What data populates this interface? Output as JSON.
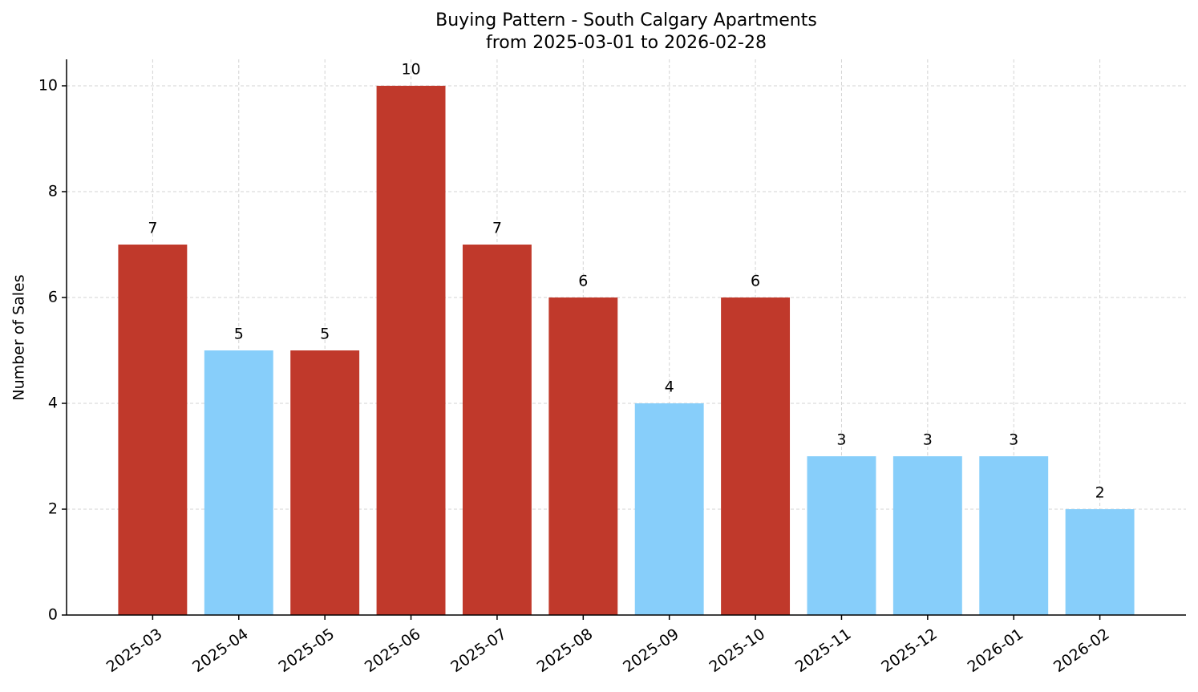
{
  "chart_data": {
    "type": "bar",
    "title": "Buying Pattern - South Calgary Apartments",
    "subtitle": "from 2025-03-01 to 2026-02-28",
    "y_label": "Number of Sales",
    "categories": [
      "2025-03",
      "2025-04",
      "2025-05",
      "2025-06",
      "2025-07",
      "2025-08",
      "2025-09",
      "2025-10",
      "2025-11",
      "2025-12",
      "2026-01",
      "2026-02"
    ],
    "values": [
      7,
      5,
      5,
      10,
      7,
      6,
      4,
      6,
      3,
      3,
      3,
      2
    ],
    "colors": [
      "#c0392b",
      "#87cefa",
      "#c0392b",
      "#c0392b",
      "#c0392b",
      "#c0392b",
      "#87cefa",
      "#c0392b",
      "#87cefa",
      "#87cefa",
      "#87cefa",
      "#87cefa"
    ],
    "ylim": [
      0,
      10.5
    ],
    "yticks": [
      0,
      2,
      4,
      6,
      8,
      10
    ],
    "grid": true
  }
}
